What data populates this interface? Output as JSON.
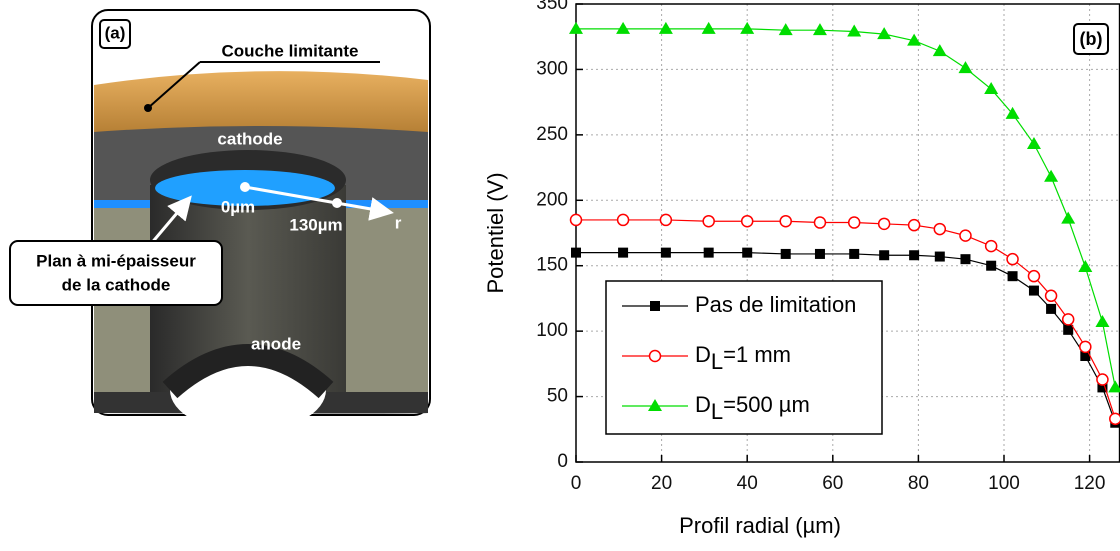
{
  "diagram": {
    "panel": "(a)",
    "layer": "Couche limitante",
    "cathode": "cathode",
    "start": "0µm",
    "end": "130µm",
    "axis": "r",
    "plane": [
      "Plan à mi-épaisseur",
      "de la cathode"
    ],
    "anode": "anode"
  },
  "chart_data": {
    "type": "line",
    "panel": "(b)",
    "x_label": "Profil radial (µm)",
    "y_label": "Potentiel (V)",
    "x": [
      0,
      11,
      21,
      31,
      40,
      49,
      57,
      65,
      72,
      79,
      85,
      91,
      97,
      102,
      107,
      111,
      115,
      119,
      123,
      126
    ],
    "series": [
      {
        "name": "Pas de limitation",
        "color": "#000000",
        "marker": "square",
        "values": [
          160,
          160,
          160,
          160,
          160,
          159,
          159,
          159,
          158,
          158,
          157,
          155,
          150,
          142,
          131,
          117,
          101,
          81,
          57,
          30
        ]
      },
      {
        "name": "DL=1 mm",
        "color": "#ff0000",
        "marker": "circle",
        "values": [
          185,
          185,
          185,
          184,
          184,
          184,
          183,
          183,
          182,
          181,
          178,
          173,
          165,
          155,
          142,
          127,
          109,
          88,
          63,
          33
        ]
      },
      {
        "name": "DL=500 µm",
        "color": "#00dd00",
        "marker": "triangle",
        "values": [
          331,
          331,
          331,
          331,
          331,
          330,
          330,
          329,
          327,
          322,
          314,
          301,
          285,
          266,
          243,
          218,
          186,
          149,
          107,
          57
        ]
      }
    ],
    "xlim": [
      0,
      127
    ],
    "xticks": [
      0,
      20,
      40,
      60,
      80,
      100,
      120
    ],
    "ylim": [
      0,
      350
    ],
    "yticks": [
      0,
      50,
      100,
      150,
      200,
      250,
      300,
      350
    ],
    "grid": true,
    "legend": "lower left"
  }
}
